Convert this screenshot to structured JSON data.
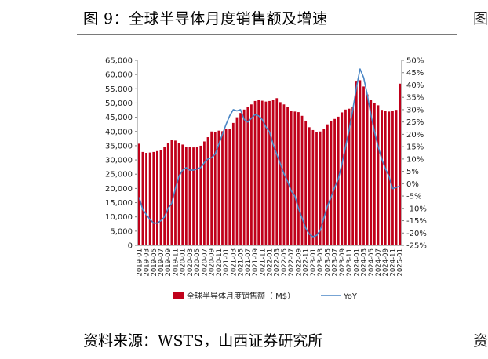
{
  "title": "图 9：全球半导体月度销售额及增速",
  "source": "资料来源：WSTS，山西证券研究所",
  "edge_glyphs": {
    "top": "图",
    "bottom": "资"
  },
  "colors": {
    "bar": "#c0001a",
    "line": "#4a86c5",
    "axis": "#808080"
  },
  "chart_data": {
    "type": "bar",
    "y_ticks": [
      "0",
      "5,000",
      "10,000",
      "15,000",
      "20,000",
      "25,000",
      "30,000",
      "35,000",
      "40,000",
      "45,000",
      "50,000",
      "55,000",
      "60,000",
      "65,000"
    ],
    "y2_ticks": [
      "-25%",
      "-20%",
      "-15%",
      "-10%",
      "-5%",
      "0%",
      "5%",
      "10%",
      "15%",
      "20%",
      "25%",
      "30%",
      "35%",
      "40%",
      "45%",
      "50%"
    ],
    "ylim": [
      0,
      65000
    ],
    "y2lim": [
      -25,
      50
    ],
    "x_tick_labels": [
      "2019-01",
      "2019-03",
      "2019-05",
      "2019-07",
      "2019-09",
      "2019-11",
      "2020-01",
      "2020-03",
      "2020-05",
      "2020-07",
      "2020-09",
      "2020-11",
      "2021-01",
      "2021-03",
      "2021-05",
      "2021-07",
      "2021-09",
      "2021-11",
      "2022-01",
      "2022-03",
      "2022-05",
      "2022-07",
      "2022-09",
      "2022-11",
      "2023-01",
      "2023-03",
      "2023-05",
      "2023-07",
      "2023-09",
      "2023-11",
      "2024-01",
      "2024-03",
      "2024-05",
      "2024-07",
      "2024-09",
      "2024-11",
      "2025-01"
    ],
    "categories": [
      "2019-01",
      "2019-02",
      "2019-03",
      "2019-04",
      "2019-05",
      "2019-06",
      "2019-07",
      "2019-08",
      "2019-09",
      "2019-10",
      "2019-11",
      "2019-12",
      "2020-01",
      "2020-02",
      "2020-03",
      "2020-04",
      "2020-05",
      "2020-06",
      "2020-07",
      "2020-08",
      "2020-09",
      "2020-10",
      "2020-11",
      "2020-12",
      "2021-01",
      "2021-02",
      "2021-03",
      "2021-04",
      "2021-05",
      "2021-06",
      "2021-07",
      "2021-08",
      "2021-09",
      "2021-10",
      "2021-11",
      "2021-12",
      "2022-01",
      "2022-02",
      "2022-03",
      "2022-04",
      "2022-05",
      "2022-06",
      "2022-07",
      "2022-08",
      "2022-09",
      "2022-10",
      "2022-11",
      "2022-12",
      "2023-01",
      "2023-02",
      "2023-03",
      "2023-04",
      "2023-05",
      "2023-06",
      "2023-07",
      "2023-08",
      "2023-09",
      "2023-10",
      "2023-11",
      "2023-12",
      "2024-01",
      "2024-02",
      "2024-03",
      "2024-04",
      "2024-05",
      "2024-06",
      "2024-07",
      "2024-08",
      "2024-09",
      "2024-10",
      "2024-11",
      "2024-12",
      "2025-01"
    ],
    "series": [
      {
        "name": "全球半导体月度销售额（M$）",
        "type": "bar",
        "axis": "left",
        "values": [
          35700,
          32800,
          32500,
          32600,
          32800,
          33100,
          33500,
          34500,
          36000,
          37000,
          36800,
          36000,
          35400,
          34500,
          34500,
          34400,
          34600,
          35000,
          36500,
          38000,
          40000,
          39800,
          40300,
          40100,
          40800,
          41000,
          43000,
          45000,
          46500,
          47700,
          48500,
          49500,
          50700,
          51000,
          50800,
          50500,
          50700,
          51100,
          51700,
          50300,
          49500,
          48500,
          47200,
          47000,
          46800,
          45500,
          43800,
          41500,
          40500,
          39700,
          40000,
          41000,
          42500,
          43600,
          44400,
          45200,
          46700,
          47700,
          48000,
          48500,
          57800,
          58000,
          55800,
          53000,
          51000,
          50000,
          49200,
          47600,
          47300,
          47000,
          47200,
          47600,
          56800
        ]
      },
      {
        "name": "YoY",
        "type": "line",
        "axis": "right",
        "values": [
          -5.5,
          -10.5,
          -12.5,
          -14.5,
          -16,
          -16,
          -15,
          -13.5,
          -10,
          -8,
          -2,
          3,
          5.5,
          6.5,
          5.5,
          5.5,
          6,
          6.5,
          8.5,
          10,
          10.5,
          12,
          16,
          20,
          24,
          27.5,
          30,
          29.5,
          30,
          26,
          25,
          26.5,
          28,
          27.5,
          26,
          23,
          21,
          16,
          12,
          8,
          4,
          1,
          -3,
          -5,
          -10,
          -14,
          -18,
          -20.5,
          -21.5,
          -21,
          -19,
          -14,
          -9,
          -5.5,
          -1.5,
          2,
          8,
          15,
          22,
          30,
          39,
          46.5,
          43,
          36,
          28,
          21,
          15,
          10,
          6,
          3,
          -2,
          -1.5,
          -1
        ]
      }
    ],
    "legend": [
      "全球半导体月度销售额（ M$）",
      "YoY"
    ],
    "legend_position": "bottom"
  }
}
